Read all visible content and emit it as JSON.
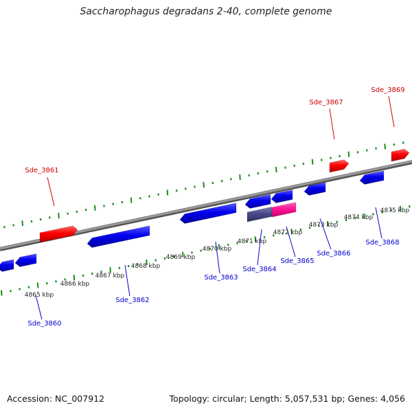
{
  "title": "Saccharophagus degradans 2-40, complete genome",
  "footer": {
    "accession": "Accession: NC_007912",
    "summary": "Topology: circular; Length: 5,057,531 bp; Genes: 4,056"
  },
  "colors": {
    "forward_gene": "#ff0000",
    "reverse_gene": "#0000ff",
    "highlight_gene": "#ff1493",
    "highlight_gene_2": "#4a4a8a",
    "backbone": "#808080",
    "ticks": "#1a8a1a",
    "forward_label": "#cc0000",
    "reverse_label": "#0000cc"
  },
  "scale_labels": [
    "4865 kbp",
    "4866 kbp",
    "4867 kbp",
    "4868 kbp",
    "4869 kbp",
    "4870 kbp",
    "4871 kbp",
    "4872 kbp",
    "4873 kbp",
    "4874 kbp",
    "4875 kbp"
  ],
  "gene_labels": [
    {
      "text": "Sde_3861",
      "strand": "forward"
    },
    {
      "text": "Sde_3867",
      "strand": "forward"
    },
    {
      "text": "Sde_3869",
      "strand": "forward"
    },
    {
      "text": "Sde_3860",
      "strand": "reverse"
    },
    {
      "text": "Sde_3862",
      "strand": "reverse"
    },
    {
      "text": "Sde_3863",
      "strand": "reverse"
    },
    {
      "text": "Sde_3864",
      "strand": "reverse"
    },
    {
      "text": "Sde_3865",
      "strand": "reverse"
    },
    {
      "text": "Sde_3866",
      "strand": "reverse"
    },
    {
      "text": "Sde_3868",
      "strand": "reverse"
    }
  ]
}
